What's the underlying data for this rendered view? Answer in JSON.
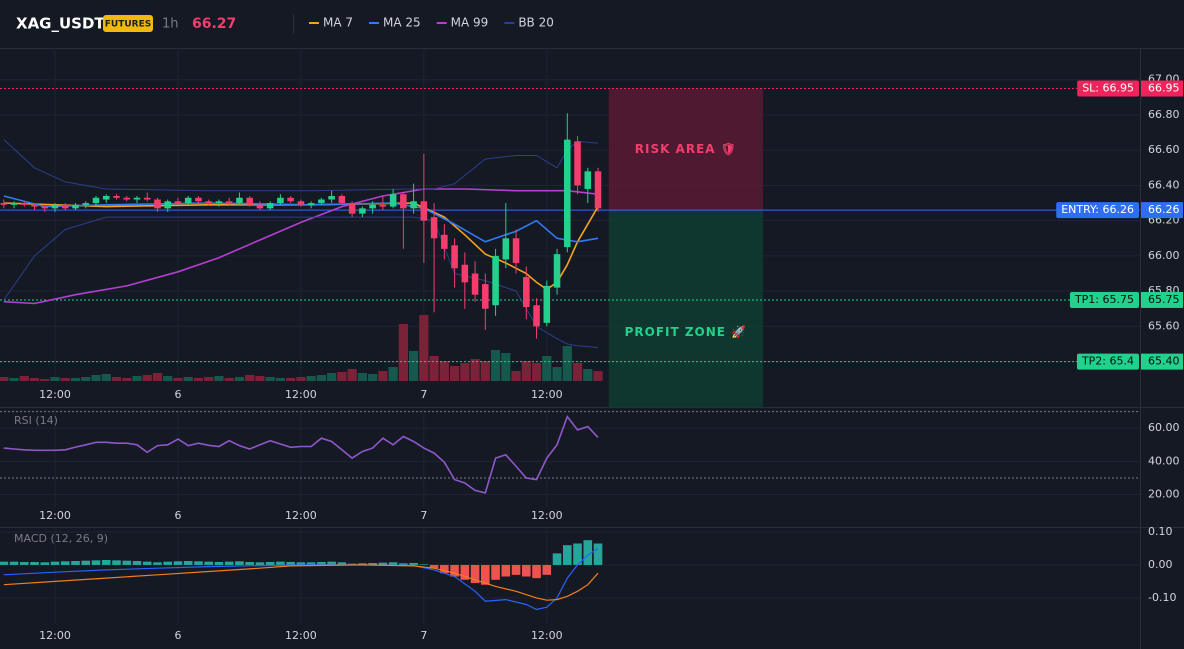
{
  "header": {
    "symbol": "XAG_USDT",
    "badge": "FUTURES",
    "interval": "1h",
    "price": "66.27"
  },
  "chart_data": [
    {
      "type": "candlestick",
      "xlim": [
        -0.37,
        110.9
      ],
      "ylim": [
        65.29,
        67.18
      ],
      "yticks": [
        {
          "value": 67,
          "label": "67.00"
        },
        {
          "value": 66.8,
          "label": "66.80"
        },
        {
          "value": 66.6,
          "label": "66.60"
        },
        {
          "value": 66.4,
          "label": "66.40"
        },
        {
          "value": 66.2,
          "label": "66.20"
        },
        {
          "value": 66,
          "label": "66.00"
        },
        {
          "value": 65.8,
          "label": "65.80"
        },
        {
          "value": 65.6,
          "label": "65.60"
        },
        {
          "value": 65.4,
          "label": "65.40"
        }
      ],
      "xticks": [
        {
          "value": 5,
          "label": "12:00"
        },
        {
          "value": 17,
          "label": "6"
        },
        {
          "value": 29,
          "label": "12:00"
        },
        {
          "value": 41,
          "label": "7"
        },
        {
          "value": 53,
          "label": "12:00"
        }
      ],
      "grid": true,
      "up_color": "#22d18b",
      "down_color": "#f23d6d",
      "volume_up_color": "#17584c",
      "volume_down_color": "#7a2237",
      "open": [
        66.3,
        66.29,
        66.3,
        66.29,
        66.28,
        66.27,
        66.29,
        66.27,
        66.29,
        66.3,
        66.32,
        66.34,
        66.33,
        66.32,
        66.33,
        66.32,
        66.27,
        66.31,
        66.3,
        66.33,
        66.31,
        66.3,
        66.31,
        66.3,
        66.33,
        66.29,
        66.27,
        66.3,
        66.33,
        66.31,
        66.29,
        66.3,
        66.32,
        66.34,
        66.3,
        66.24,
        66.27,
        66.29,
        66.28,
        66.35,
        66.27,
        66.31,
        66.22,
        66.12,
        66.06,
        65.95,
        65.9,
        65.84,
        65.72,
        65.98,
        66.1,
        65.88,
        65.72,
        65.62,
        65.82,
        66.05,
        66.65,
        66.38,
        66.48
      ],
      "high": [
        66.32,
        66.31,
        66.31,
        66.3,
        66.29,
        66.3,
        66.3,
        66.3,
        66.31,
        66.34,
        66.35,
        66.35,
        66.34,
        66.34,
        66.36,
        66.33,
        66.32,
        66.33,
        66.34,
        66.34,
        66.32,
        66.32,
        66.33,
        66.36,
        66.34,
        66.31,
        66.31,
        66.35,
        66.34,
        66.32,
        66.31,
        66.33,
        66.37,
        66.35,
        66.31,
        66.28,
        66.31,
        66.34,
        66.38,
        66.36,
        66.41,
        66.58,
        66.3,
        66.18,
        66.1,
        66.02,
        65.97,
        65.9,
        66.04,
        66.3,
        66.15,
        65.94,
        65.76,
        65.86,
        66.04,
        66.81,
        66.68,
        66.5,
        66.5
      ],
      "low": [
        66.27,
        66.27,
        66.28,
        66.26,
        66.25,
        66.25,
        66.26,
        66.26,
        66.27,
        66.28,
        66.3,
        66.32,
        66.31,
        66.3,
        66.31,
        66.25,
        66.25,
        66.29,
        66.29,
        66.3,
        66.29,
        66.28,
        66.29,
        66.29,
        66.28,
        66.26,
        66.26,
        66.29,
        66.3,
        66.28,
        66.27,
        66.29,
        66.3,
        66.29,
        66.22,
        66.22,
        66.24,
        66.26,
        66.27,
        66.04,
        66.24,
        65.96,
        65.68,
        65.98,
        65.82,
        65.7,
        65.74,
        65.58,
        65.66,
        65.93,
        65.9,
        65.64,
        65.53,
        65.6,
        65.78,
        66.02,
        66.35,
        66.3,
        66.25
      ],
      "close": [
        66.29,
        66.3,
        66.29,
        66.28,
        66.27,
        66.29,
        66.27,
        66.29,
        66.3,
        66.33,
        66.34,
        66.33,
        66.32,
        66.33,
        66.32,
        66.27,
        66.31,
        66.3,
        66.33,
        66.31,
        66.3,
        66.31,
        66.3,
        66.33,
        66.29,
        66.27,
        66.3,
        66.33,
        66.31,
        66.29,
        66.3,
        66.32,
        66.34,
        66.3,
        66.24,
        66.27,
        66.29,
        66.28,
        66.35,
        66.27,
        66.31,
        66.2,
        66.1,
        66.04,
        65.93,
        65.85,
        65.78,
        65.7,
        66.0,
        66.1,
        65.96,
        65.71,
        65.6,
        65.83,
        66.01,
        66.66,
        66.4,
        66.48,
        66.27
      ],
      "volume": [
        4,
        3,
        5,
        3,
        2,
        4,
        3,
        3,
        4,
        6,
        7,
        4,
        3,
        5,
        6,
        8,
        5,
        3,
        4,
        3,
        4,
        5,
        3,
        4,
        6,
        5,
        4,
        3,
        3,
        4,
        5,
        6,
        8,
        9,
        12,
        8,
        7,
        10,
        14,
        57,
        30,
        66,
        25,
        20,
        15,
        18,
        22,
        20,
        31,
        28,
        10,
        20,
        18,
        25,
        14,
        35,
        18,
        12,
        10
      ],
      "volume_lim": [
        0,
        333
      ],
      "series": [
        {
          "name": "MA 7",
          "color": "#f7a21b",
          "x": [
            0,
            10,
            20,
            30,
            40,
            43,
            45,
            47,
            49,
            51,
            52,
            53,
            54,
            55,
            56,
            57,
            58
          ],
          "values": [
            66.3,
            66.28,
            66.29,
            66.29,
            66.3,
            66.22,
            66.12,
            66.01,
            65.96,
            65.9,
            65.85,
            65.81,
            65.85,
            65.95,
            66.08,
            66.18,
            66.28
          ]
        },
        {
          "name": "MA 25",
          "color": "#2f7cf6",
          "x": [
            0,
            4,
            10,
            20,
            30,
            38,
            41,
            44,
            47,
            50,
            52,
            54,
            56,
            58
          ],
          "values": [
            66.34,
            66.28,
            66.29,
            66.3,
            66.29,
            66.3,
            66.27,
            66.18,
            66.08,
            66.14,
            66.2,
            66.1,
            66.08,
            66.1
          ]
        },
        {
          "name": "MA 99",
          "color": "#b43fd0",
          "x": [
            0,
            3,
            7,
            12,
            17,
            21,
            25,
            29,
            33,
            37,
            41,
            45,
            50,
            55,
            58
          ],
          "values": [
            65.74,
            65.73,
            65.78,
            65.83,
            65.91,
            65.99,
            66.09,
            66.19,
            66.28,
            66.34,
            66.38,
            66.38,
            66.37,
            66.37,
            66.35
          ]
        },
        {
          "name": "BB 20",
          "color": "#2b3f8a",
          "x": [
            0,
            3,
            6,
            10,
            20,
            30,
            40,
            42,
            44,
            47,
            50,
            52,
            54,
            55,
            56,
            58
          ],
          "values": [
            66.66,
            66.5,
            66.42,
            66.38,
            66.37,
            66.37,
            66.38,
            66.38,
            66.41,
            66.55,
            66.57,
            66.57,
            66.5,
            66.6,
            66.65,
            66.64
          ],
          "lower": [
            65.75,
            66.0,
            66.15,
            66.22,
            66.22,
            66.22,
            66.22,
            66.2,
            65.9,
            65.86,
            65.8,
            65.6,
            65.53,
            65.5,
            65.49,
            65.48
          ]
        }
      ],
      "levels": [
        {
          "label": "SL: 66.95",
          "axis_label": "66.95",
          "value": 66.95,
          "color": "#f0245c",
          "style": "dotted"
        },
        {
          "label": "ENTRY: 66.26",
          "axis_label": "66.26",
          "value": 66.26,
          "color": "#2f6ef0",
          "style": "solid"
        },
        {
          "label": "TP1: 65.75",
          "axis_label": "65.75",
          "value": 65.75,
          "color": "#22d18b",
          "style": "dotted"
        },
        {
          "label": "TP2: 65.4",
          "axis_label": "65.40",
          "value": 65.4,
          "color": "#22d18b",
          "style": "dotted"
        }
      ],
      "zones": [
        {
          "label": "RISK AREA 🛡",
          "from": 66.26,
          "to": 66.95,
          "xrange": [
            59.05,
            74.1
          ],
          "color": "#5a1a35",
          "text_color": "#f23d6d"
        },
        {
          "label": "PROFIT ZONE 🚀",
          "from": 65.14,
          "to": 66.26,
          "xrange": [
            59.05,
            74.1
          ],
          "color": "#0f3d31",
          "text_color": "#22d18b"
        }
      ]
    },
    {
      "type": "line",
      "title": "RSI (14)",
      "color": "#8e57c9",
      "xlim": [
        -0.37,
        110.9
      ],
      "ylim": [
        12.5,
        71
      ],
      "yticks": [
        {
          "value": 60,
          "label": "60.00"
        },
        {
          "value": 40,
          "label": "40.00"
        },
        {
          "value": 20,
          "label": "20.00"
        }
      ],
      "guides": [
        70,
        30
      ],
      "xticks": [
        {
          "value": 5,
          "label": "12:00"
        },
        {
          "value": 17,
          "label": "6"
        },
        {
          "value": 29,
          "label": "12:00"
        },
        {
          "value": 41,
          "label": "7"
        },
        {
          "value": 53,
          "label": "12:00"
        }
      ],
      "values": [
        48,
        47.5,
        47,
        46.7,
        46.7,
        46.7,
        47,
        48.6,
        50,
        51.5,
        51.5,
        51,
        51,
        50,
        45.5,
        49.5,
        50,
        53.5,
        49.5,
        51,
        49.7,
        49,
        52.5,
        49.5,
        47.5,
        50,
        52.5,
        50.5,
        48.5,
        49,
        49,
        54,
        52,
        47,
        42,
        46,
        48,
        54,
        50,
        55,
        52,
        48,
        45,
        39.5,
        29,
        27,
        22.5,
        21,
        42,
        44,
        37,
        30,
        29,
        42,
        50,
        67,
        59,
        61,
        54.5
      ]
    },
    {
      "type": "bar",
      "title": "MACD (12, 26, 9)",
      "up_color": "#26a69a",
      "down_color": "#ef5350",
      "xlim": [
        -0.37,
        110.9
      ],
      "ylim": [
        -0.179,
        0.112
      ],
      "yticks": [
        {
          "value": 0.1,
          "label": "0.10"
        },
        {
          "value": 0,
          "label": "0.00"
        },
        {
          "value": -0.1,
          "label": "-0.10"
        }
      ],
      "xticks": [
        {
          "value": 5,
          "label": "12:00"
        },
        {
          "value": 17,
          "label": "6"
        },
        {
          "value": 29,
          "label": "12:00"
        },
        {
          "value": 41,
          "label": "7"
        },
        {
          "value": 53,
          "label": "12:00"
        }
      ],
      "values": [
        0.01,
        0.01,
        0.009,
        0.009,
        0.008,
        0.01,
        0.011,
        0.012,
        0.013,
        0.014,
        0.015,
        0.014,
        0.013,
        0.012,
        0.01,
        0.008,
        0.01,
        0.011,
        0.012,
        0.011,
        0.01,
        0.009,
        0.01,
        0.011,
        0.009,
        0.008,
        0.009,
        0.01,
        0.009,
        0.008,
        0.008,
        0.009,
        0.01,
        0.008,
        0.004,
        0.005,
        0.006,
        0.007,
        0.008,
        0.005,
        0.006,
        0.002,
        -0.01,
        -0.025,
        -0.035,
        -0.045,
        -0.055,
        -0.06,
        -0.045,
        -0.035,
        -0.03,
        -0.035,
        -0.04,
        -0.03,
        0.035,
        0.06,
        0.065,
        0.075,
        0.065
      ],
      "series": [
        {
          "name": "MACD",
          "color": "#2962ff",
          "x": [
            0,
            5,
            10,
            15,
            20,
            25,
            30,
            35,
            40,
            42,
            44,
            46,
            47,
            49,
            51,
            52,
            53,
            54,
            55,
            56,
            57,
            58
          ],
          "values": [
            -0.03,
            -0.022,
            -0.015,
            -0.01,
            -0.005,
            -0.002,
            0,
            0,
            -0.002,
            -0.015,
            -0.035,
            -0.08,
            -0.11,
            -0.105,
            -0.12,
            -0.135,
            -0.128,
            -0.1,
            -0.04,
            0,
            0.03,
            0.05
          ]
        },
        {
          "name": "Signal",
          "color": "#f07f1a",
          "x": [
            0,
            5,
            10,
            15,
            20,
            25,
            28,
            35,
            40,
            42,
            44,
            46,
            48,
            50,
            52,
            53,
            54,
            55,
            56,
            57,
            58
          ],
          "values": [
            -0.06,
            -0.05,
            -0.04,
            -0.03,
            -0.02,
            -0.01,
            -0.003,
            0,
            -0.003,
            -0.01,
            -0.025,
            -0.045,
            -0.065,
            -0.08,
            -0.1,
            -0.107,
            -0.105,
            -0.095,
            -0.08,
            -0.06,
            -0.025
          ]
        }
      ]
    }
  ]
}
